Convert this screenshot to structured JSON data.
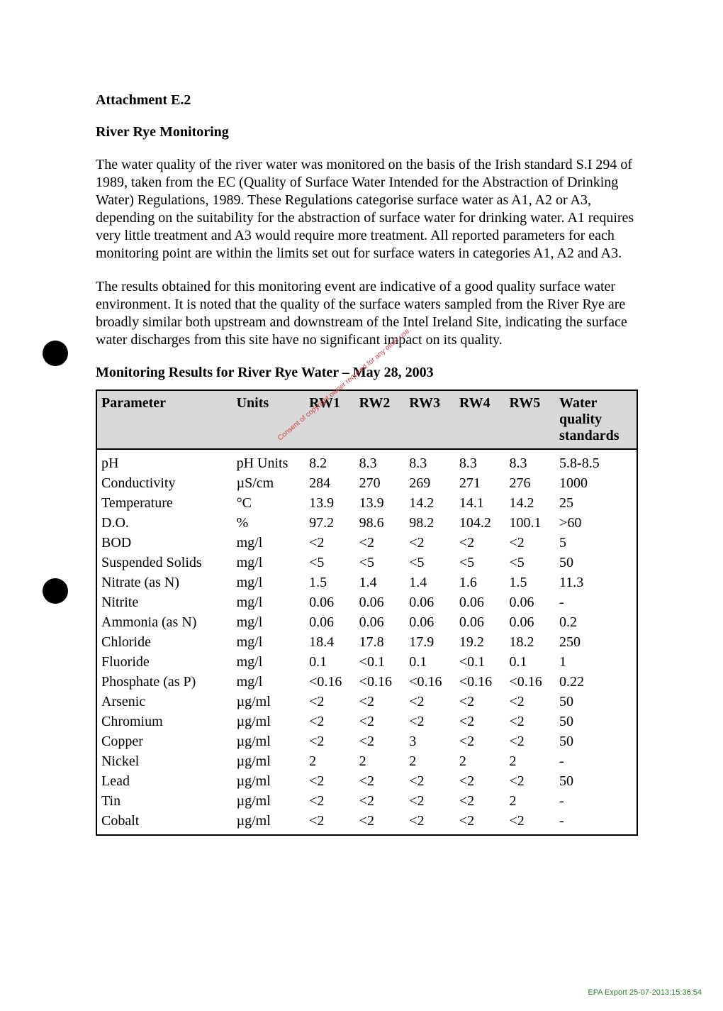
{
  "attachment_title": "Attachment E.2",
  "section_title": "River Rye Monitoring",
  "paragraphs": [
    "The water quality of the river water was monitored on the basis of the Irish standard S.I 294 of 1989, taken from the EC (Quality of Surface Water Intended for the Abstraction of Drinking Water) Regulations, 1989. These Regulations categorise surface water as A1, A2 or A3, depending on the suitability for the abstraction of surface water for drinking water. A1 requires very little treatment and A3 would require more treatment. All reported parameters for each monitoring point are within the limits set out for surface waters in categories A1, A2 and A3.",
    "The results obtained for this monitoring event are indicative of a good quality surface water environment. It is noted that the quality of the surface waters sampled from the River Rye are broadly similar both upstream and downstream of the Intel Ireland Site, indicating the surface water discharges from this site have no significant impact on its quality."
  ],
  "table_title": "Monitoring Results for River Rye Water – May 28, 2003",
  "table": {
    "columns": [
      "Parameter",
      "Units",
      "RW1",
      "RW2",
      "RW3",
      "RW4",
      "RW5",
      "Water quality standards"
    ],
    "rows": [
      [
        "pH",
        "pH Units",
        "8.2",
        "8.3",
        "8.3",
        "8.3",
        "8.3",
        "5.8-8.5"
      ],
      [
        "Conductivity",
        "µS/cm",
        "284",
        "270",
        "269",
        "271",
        "276",
        "1000"
      ],
      [
        "Temperature",
        "°C",
        "13.9",
        "13.9",
        "14.2",
        "14.1",
        "14.2",
        "25"
      ],
      [
        "D.O.",
        "%",
        "97.2",
        "98.6",
        "98.2",
        "104.2",
        "100.1",
        ">60"
      ],
      [
        "BOD",
        "mg/l",
        "<2",
        "<2",
        "<2",
        "<2",
        "<2",
        "5"
      ],
      [
        "Suspended Solids",
        "mg/l",
        "<5",
        "<5",
        "<5",
        "<5",
        "<5",
        "50"
      ],
      [
        "Nitrate (as N)",
        "mg/l",
        "1.5",
        "1.4",
        "1.4",
        "1.6",
        "1.5",
        "11.3"
      ],
      [
        "Nitrite",
        "mg/l",
        "0.06",
        "0.06",
        "0.06",
        "0.06",
        "0.06",
        "-"
      ],
      [
        "Ammonia (as N)",
        "mg/l",
        "0.06",
        "0.06",
        "0.06",
        "0.06",
        "0.06",
        "0.2"
      ],
      [
        "Chloride",
        "mg/l",
        "18.4",
        "17.8",
        "17.9",
        "19.2",
        "18.2",
        "250"
      ],
      [
        "Fluoride",
        "mg/l",
        "0.1",
        "<0.1",
        "0.1",
        "<0.1",
        "0.1",
        "1"
      ],
      [
        "Phosphate (as P)",
        "mg/l",
        "<0.16",
        "<0.16",
        "<0.16",
        "<0.16",
        "<0.16",
        "0.22"
      ],
      [
        "Arsenic",
        "µg/ml",
        "<2",
        "<2",
        "<2",
        "<2",
        "<2",
        "50"
      ],
      [
        "Chromium",
        "µg/ml",
        "<2",
        "<2",
        "<2",
        "<2",
        "<2",
        "50"
      ],
      [
        "Copper",
        "µg/ml",
        "<2",
        "<2",
        "3",
        "<2",
        "<2",
        "50"
      ],
      [
        "Nickel",
        "µg/ml",
        "2",
        "2",
        "2",
        "2",
        "2",
        "-"
      ],
      [
        "Lead",
        "µg/ml",
        "<2",
        "<2",
        "<2",
        "<2",
        "<2",
        "50"
      ],
      [
        "Tin",
        "µg/ml",
        "<2",
        "<2",
        "<2",
        "<2",
        "2",
        "-"
      ],
      [
        "Cobalt",
        "µg/ml",
        "<2",
        "<2",
        "<2",
        "<2",
        "<2",
        "-"
      ]
    ],
    "header_bg": "#d8d8d8",
    "border_color": "#000000",
    "font_size_pt": 15
  },
  "watermark_text": "Consent of copyright owner required for any other use.",
  "footer_text": "EPA Export 25-07-2013:15:36:54",
  "colors": {
    "page_bg": "#ffffff",
    "text": "#000000",
    "footer": "#2e7d32",
    "watermark": "#cc4444"
  }
}
